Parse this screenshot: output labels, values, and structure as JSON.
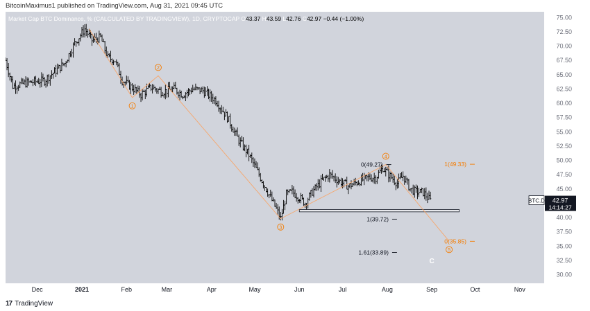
{
  "header": {
    "text": "BitcoinMaximus1 published on TradingView.com, Aug 31, 2021 09:45 UTC"
  },
  "legend": {
    "title": "Market Cap BTC Dominance, % (CALCULATED BY TRADINGVIEW), 1D, CRYPTOCAP",
    "o_label": "O",
    "o_value": "43.37",
    "h_label": "H",
    "h_value": "43.59",
    "l_label": "L",
    "l_value": "42.76",
    "c_label": "C",
    "c_value": "42.97",
    "change": "−0.44 (−1.00%)"
  },
  "footer": {
    "logo_text": "17",
    "brand": "TradingView"
  },
  "colors": {
    "background": "#d1d4dc",
    "candle": "#000000",
    "wave_line": "#f7a66b",
    "wave_label": "#f57c00",
    "fib_black": "#131722",
    "fib_orange": "#f57c00",
    "support_fill": "#d1d4dc",
    "support_stroke": "#131722",
    "price_tag": "#131722"
  },
  "chart_data": {
    "type": "candlestick",
    "symbol": "BTC.D",
    "last_price": "42.97",
    "countdown": "14:14:27",
    "y_ticks": [
      "30.00",
      "32.50",
      "35.00",
      "37.50",
      "40.00",
      "42.50",
      "45.00",
      "47.50",
      "50.00",
      "52.50",
      "55.00",
      "57.50",
      "60.00",
      "62.50",
      "65.00",
      "67.50",
      "70.00",
      "72.50",
      "75.00"
    ],
    "x_ticks": [
      "Dec",
      "2021",
      "Feb",
      "Mar",
      "Apr",
      "May",
      "Jun",
      "Jul",
      "Aug",
      "Sep",
      "Oct",
      "Nov"
    ],
    "ylim": [
      28.5,
      76
    ],
    "x_domain": [
      "2020-11-09",
      "2021-11-18"
    ],
    "price_path": [
      [
        "2020-11-09",
        67.5
      ],
      [
        "2020-11-14",
        63.0
      ],
      [
        "2020-11-22",
        63.5
      ],
      [
        "2020-12-06",
        64.0
      ],
      [
        "2020-12-20",
        67.0
      ],
      [
        "2020-12-27",
        70.5
      ],
      [
        "2021-01-03",
        73.0
      ],
      [
        "2021-01-08",
        71.0
      ],
      [
        "2021-01-14",
        71.5
      ],
      [
        "2021-01-19",
        68.0
      ],
      [
        "2021-01-24",
        67.5
      ],
      [
        "2021-01-29",
        64.0
      ],
      [
        "2021-02-06",
        62.5
      ],
      [
        "2021-02-11",
        61.5
      ],
      [
        "2021-02-18",
        62.8
      ],
      [
        "2021-02-26",
        62.0
      ],
      [
        "2021-03-06",
        62.5
      ],
      [
        "2021-03-12",
        61.5
      ],
      [
        "2021-03-19",
        62.5
      ],
      [
        "2021-03-26",
        62.2
      ],
      [
        "2021-04-04",
        60.5
      ],
      [
        "2021-04-12",
        57.5
      ],
      [
        "2021-04-20",
        53.5
      ],
      [
        "2021-04-27",
        51.0
      ],
      [
        "2021-05-04",
        47.5
      ],
      [
        "2021-05-10",
        44.5
      ],
      [
        "2021-05-16",
        41.5
      ],
      [
        "2021-05-19",
        39.8
      ],
      [
        "2021-05-23",
        44.0
      ],
      [
        "2021-05-27",
        44.5
      ],
      [
        "2021-06-01",
        43.5
      ],
      [
        "2021-06-05",
        42.5
      ],
      [
        "2021-06-10",
        44.5
      ],
      [
        "2021-06-17",
        46.5
      ],
      [
        "2021-06-22",
        47.5
      ],
      [
        "2021-06-28",
        46.5
      ],
      [
        "2021-07-05",
        45.5
      ],
      [
        "2021-07-12",
        46.3
      ],
      [
        "2021-07-19",
        47.0
      ],
      [
        "2021-07-24",
        47.0
      ],
      [
        "2021-07-29",
        48.7
      ],
      [
        "2021-08-02",
        47.5
      ],
      [
        "2021-08-08",
        46.0
      ],
      [
        "2021-08-12",
        47.3
      ],
      [
        "2021-08-17",
        45.0
      ],
      [
        "2021-08-21",
        44.5
      ],
      [
        "2021-08-26",
        44.4
      ],
      [
        "2021-08-31",
        42.97
      ]
    ],
    "support_box": {
      "y_range": [
        41.0,
        41.4
      ],
      "x_range": [
        "2021-06-01",
        "2021-09-20"
      ]
    },
    "waves": [
      {
        "label": "1",
        "date": "2021-02-05",
        "value": 61.0
      },
      {
        "label": "2",
        "date": "2021-02-23",
        "value": 64.8
      },
      {
        "label": "3",
        "date": "2021-05-19",
        "value": 39.8
      },
      {
        "label": "4",
        "date": "2021-07-31",
        "value": 49.27
      },
      {
        "label": "5",
        "date": "2021-09-13",
        "value": 35.85
      }
    ],
    "wave_start": {
      "date": "2021-01-06",
      "value": 73.0
    },
    "wave_c_label": "C",
    "fib_levels": [
      {
        "label": "0(49.27)",
        "value": 49.27,
        "date": "2021-07-29",
        "color": "black"
      },
      {
        "label": "1(39.72)",
        "value": 39.72,
        "date": "2021-08-02",
        "color": "black"
      },
      {
        "label": "1.61(33.89)",
        "value": 33.89,
        "date": "2021-08-02",
        "color": "black"
      },
      {
        "label": "1(49.33)",
        "value": 49.33,
        "date": "2021-09-25",
        "color": "orange"
      },
      {
        "label": "0(35.85)",
        "value": 35.85,
        "date": "2021-09-25",
        "color": "orange"
      }
    ]
  }
}
